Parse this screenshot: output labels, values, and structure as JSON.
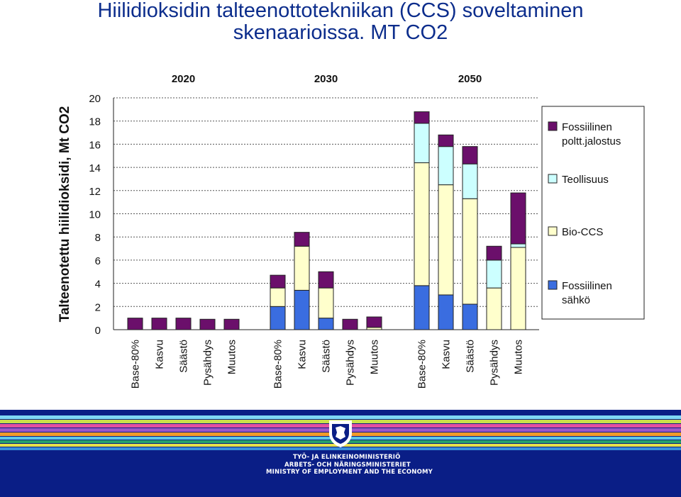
{
  "slide": {
    "title_line1": "Hiilidioksidin talteenottotekniikan (CCS) soveltaminen",
    "title_line2": "skenaarioissa. MT CO2"
  },
  "chart_data": {
    "type": "bar",
    "stacked": true,
    "ylabel": "Talteenotettu hiilidioksidi, Mt CO2",
    "ylim": [
      0,
      20
    ],
    "yticks": [
      0,
      2,
      4,
      6,
      8,
      10,
      12,
      14,
      16,
      18,
      20
    ],
    "grid": true,
    "legend_position": "right",
    "groups": [
      {
        "label": "2020",
        "categories": [
          "Base-80%",
          "Kasvu",
          "Säästö",
          "Pysähdys",
          "Muutos"
        ]
      },
      {
        "label": "2030",
        "categories": [
          "Base-80%",
          "Kasvu",
          "Säästö",
          "Pysähdys",
          "Muutos"
        ]
      },
      {
        "label": "2050",
        "categories": [
          "Base-80%",
          "Kasvu",
          "Säästö",
          "Pysähdys",
          "Muutos"
        ]
      }
    ],
    "series": [
      {
        "name": "Fossiilinen sähkö",
        "color": "#3a6de0",
        "values": [
          [
            0,
            0,
            0,
            0,
            0
          ],
          [
            2.0,
            3.4,
            1.0,
            0,
            0
          ],
          [
            3.8,
            3.0,
            2.2,
            0,
            0
          ]
        ]
      },
      {
        "name": "Bio-CCS",
        "color": "#ffffcc",
        "values": [
          [
            0,
            0,
            0,
            0,
            0
          ],
          [
            1.6,
            3.8,
            2.6,
            0,
            0.2
          ],
          [
            10.6,
            9.5,
            9.1,
            3.6,
            7.1
          ]
        ]
      },
      {
        "name": "Teollisuus",
        "color": "#ccffff",
        "values": [
          [
            0,
            0,
            0,
            0,
            0
          ],
          [
            0,
            0,
            0,
            0,
            0
          ],
          [
            3.4,
            3.3,
            3.0,
            2.4,
            0.3
          ]
        ]
      },
      {
        "name": "Fossiilinen poltt.jalostus",
        "color": "#6b0f6b",
        "values": [
          [
            1.0,
            1.0,
            1.0,
            0.9,
            0.9
          ],
          [
            1.1,
            1.2,
            1.4,
            0.9,
            0.9
          ],
          [
            1.0,
            1.0,
            1.5,
            1.2,
            4.4
          ]
        ]
      }
    ]
  },
  "footer": {
    "ministry_fi": "TYÖ- JA ELINKEINOMINISTERIÖ",
    "ministry_sv": "ARBETS- OCH NÄRINGSMINISTERIET",
    "ministry_en": "MINISTRY OF EMPLOYMENT AND THE ECONOMY"
  }
}
